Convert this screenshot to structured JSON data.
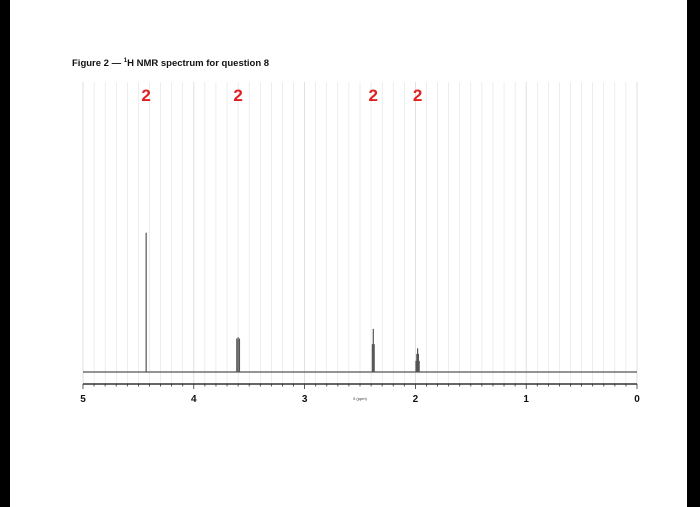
{
  "figure": {
    "title_prefix": "Figure 2 — ",
    "title_sup": "1",
    "title_main": "H NMR spectrum for question 8"
  },
  "chart_data": {
    "type": "line",
    "title": "Figure 2 — 1H NMR spectrum for question 8",
    "xlabel": "δ (ppm)",
    "xlim": [
      5,
      0
    ],
    "x_reversed": true,
    "ylim": [
      0,
      1
    ],
    "grid": true,
    "ticks": [
      "5",
      "4",
      "3",
      "2",
      "1",
      "0"
    ],
    "peaks": [
      {
        "shift": 4.43,
        "lines": [
          {
            "dx": 0,
            "h": 1.0
          }
        ]
      },
      {
        "shift": 3.6,
        "lines": [
          {
            "dx": -0.012,
            "h": 0.24
          },
          {
            "dx": 0.0,
            "h": 0.25
          },
          {
            "dx": 0.012,
            "h": 0.24
          }
        ]
      },
      {
        "shift": 2.38,
        "lines": [
          {
            "dx": -0.008,
            "h": 0.2
          },
          {
            "dx": 0.0,
            "h": 0.31
          },
          {
            "dx": 0.008,
            "h": 0.2
          }
        ]
      },
      {
        "shift": 1.98,
        "lines": [
          {
            "dx": -0.014,
            "h": 0.08
          },
          {
            "dx": -0.007,
            "h": 0.13
          },
          {
            "dx": 0.0,
            "h": 0.17
          },
          {
            "dx": 0.007,
            "h": 0.13
          },
          {
            "dx": 0.014,
            "h": 0.08
          }
        ]
      }
    ],
    "integrations": [
      {
        "shift": 4.43,
        "label": "2"
      },
      {
        "shift": 3.6,
        "label": "2"
      },
      {
        "shift": 2.38,
        "label": "2"
      },
      {
        "shift": 1.98,
        "label": "2"
      }
    ],
    "colors": {
      "trace": "#555555",
      "integration": "#e02020",
      "grid": "#dcdcdc"
    }
  }
}
